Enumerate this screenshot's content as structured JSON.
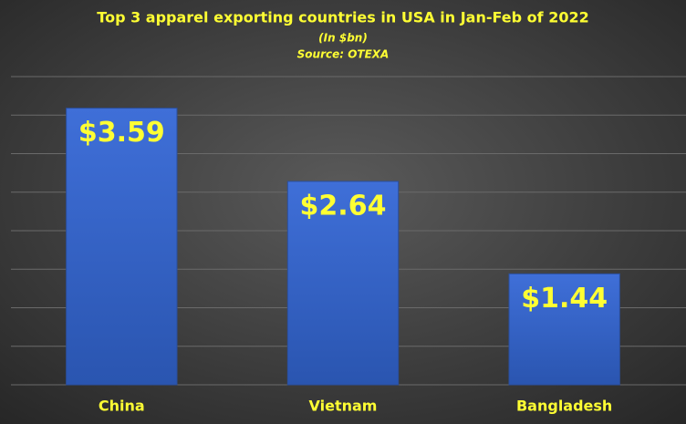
{
  "chart_data": {
    "type": "bar",
    "title": "Top 3 apparel exporting countries in USA in Jan-Feb of 2022",
    "subtitle": "(In $bn)",
    "source": "Source: OTEXA",
    "categories": [
      "China",
      "Vietnam",
      "Bangladesh"
    ],
    "values": [
      3.59,
      2.64,
      1.44
    ],
    "value_labels": [
      "$3.59",
      "$2.64",
      "$1.44"
    ],
    "color": "#3a66c8",
    "ylim": [
      0,
      4
    ],
    "yticks": [
      0,
      0.5,
      1,
      1.5,
      2,
      2.5,
      3,
      3.5,
      4
    ],
    "grid": true
  }
}
